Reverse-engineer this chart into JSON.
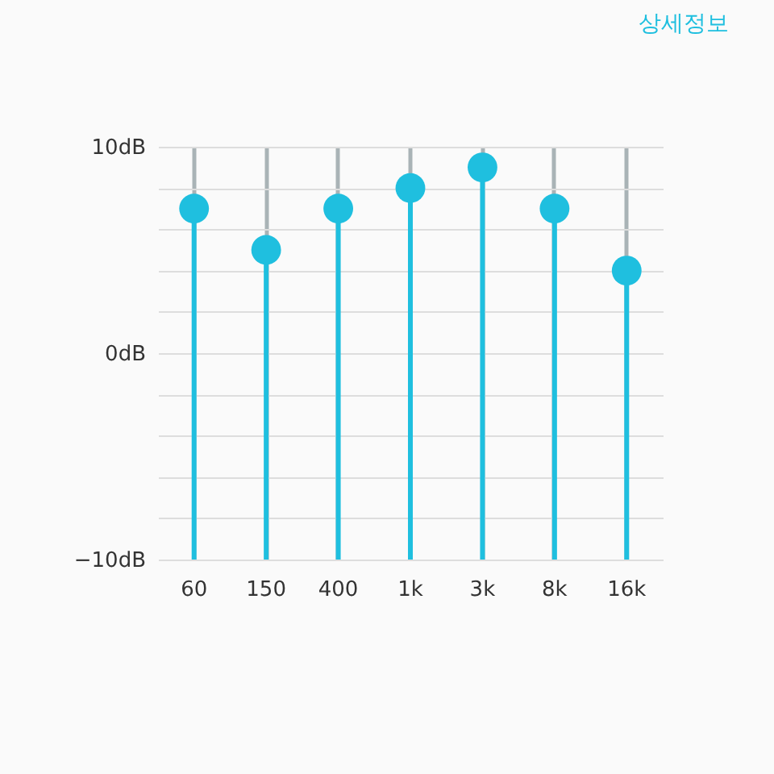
{
  "chart_data": {
    "type": "lollipop",
    "categories": [
      "60",
      "150",
      "400",
      "1k",
      "3k",
      "8k",
      "16k"
    ],
    "values": [
      7,
      5,
      7,
      8,
      9,
      7,
      4
    ],
    "color": "#1fbfdf",
    "ylim": [
      -10,
      10
    ],
    "yticks": [
      {
        "value": -10,
        "label": "−10dB"
      },
      {
        "value": -8,
        "label": null
      },
      {
        "value": -6,
        "label": null
      },
      {
        "value": -4,
        "label": null
      },
      {
        "value": -2,
        "label": null
      },
      {
        "value": 0,
        "label": "0dB"
      },
      {
        "value": 2,
        "label": null
      },
      {
        "value": 4,
        "label": null
      },
      {
        "value": 6,
        "label": null
      },
      {
        "value": 8,
        "label": null
      },
      {
        "value": 10,
        "label": "10dB"
      }
    ],
    "grid": true,
    "marker": "circle",
    "annotations": [
      "상세정보"
    ]
  }
}
